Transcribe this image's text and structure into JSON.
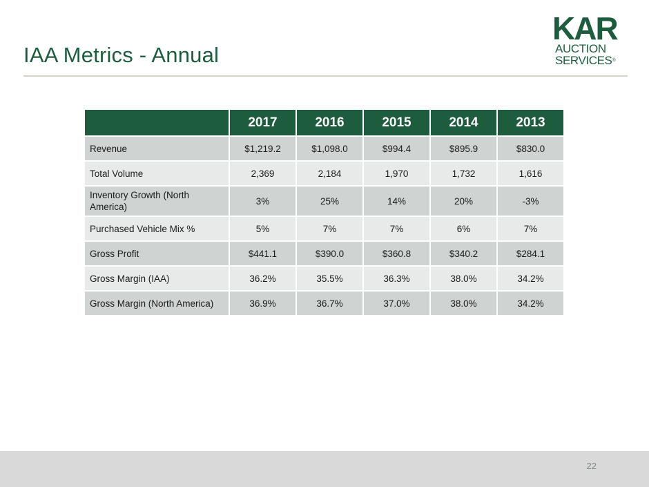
{
  "slide": {
    "title": "IAA Metrics - Annual",
    "page_number": "22"
  },
  "logo": {
    "line1": "KAR",
    "line2": "AUCTION",
    "line3": "SERVICES",
    "registered": "®"
  },
  "colors": {
    "brand_green": "#1e5c3e",
    "row_dark": "#cfd3d1",
    "row_light": "#e8eae9",
    "footer_gray": "#d9d9d9"
  },
  "table": {
    "headers": [
      "",
      "2017",
      "2016",
      "2015",
      "2014",
      "2013"
    ],
    "rows": [
      {
        "label": "Revenue",
        "values": [
          "$1,219.2",
          "$1,098.0",
          "$994.4",
          "$895.9",
          "$830.0"
        ]
      },
      {
        "label": "Total Volume",
        "values": [
          "2,369",
          "2,184",
          "1,970",
          "1,732",
          "1,616"
        ]
      },
      {
        "label": "Inventory Growth (North America)",
        "values": [
          "3%",
          "25%",
          "14%",
          "20%",
          "-3%"
        ]
      },
      {
        "label": "Purchased Vehicle Mix %",
        "values": [
          "5%",
          "7%",
          "7%",
          "6%",
          "7%"
        ]
      },
      {
        "label": "Gross Profit",
        "values": [
          "$441.1",
          "$390.0",
          "$360.8",
          "$340.2",
          "$284.1"
        ]
      },
      {
        "label": "Gross Margin (IAA)",
        "values": [
          "36.2%",
          "35.5%",
          "36.3%",
          "38.0%",
          "34.2%"
        ]
      },
      {
        "label": "Gross Margin (North America)",
        "values": [
          "36.9%",
          "36.7%",
          "37.0%",
          "38.0%",
          "34.2%"
        ]
      }
    ]
  }
}
